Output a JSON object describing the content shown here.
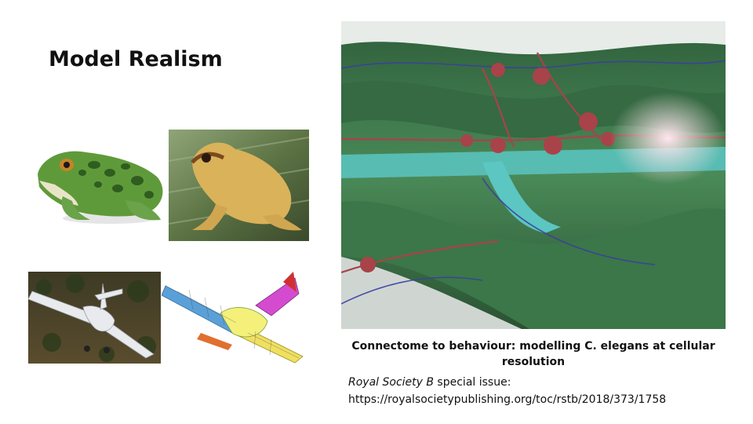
{
  "slide": {
    "title": "Model Realism"
  },
  "caption": {
    "heading": "Connectome to behaviour: modelling C. elegans at cellular resolution",
    "journal": "Royal Society B",
    "journal_suffix": " special issue:",
    "url": "https://royalsocietypublishing.org/toc/rstb/2018/373/1758"
  },
  "colors": {
    "worm_green": "#3f7a4a",
    "worm_red": "#a8434a",
    "worm_cyan": "#5bc6c2",
    "frog_green": "#5f9a3a",
    "treefrog_yellow": "#d9b25a"
  }
}
